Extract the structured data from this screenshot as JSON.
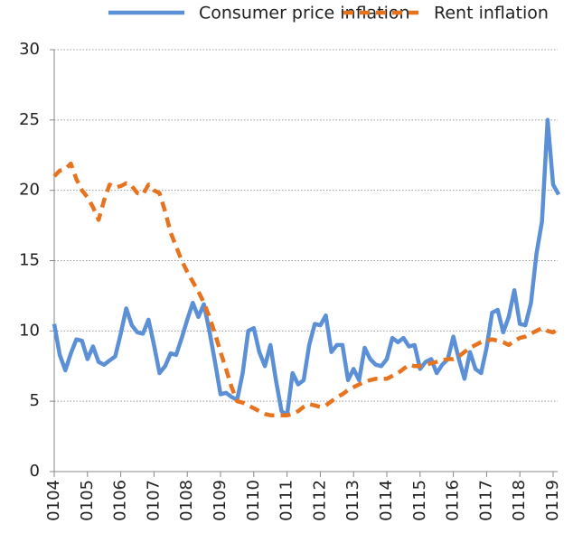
{
  "chart_data": {
    "type": "line",
    "categories": [
      "0104",
      null,
      null,
      null,
      null,
      null,
      "0105",
      null,
      null,
      null,
      null,
      null,
      "0106",
      null,
      null,
      null,
      null,
      null,
      "0107",
      null,
      null,
      null,
      null,
      null,
      "0108",
      null,
      null,
      null,
      null,
      null,
      "0109",
      null,
      null,
      null,
      null,
      null,
      "0110",
      null,
      null,
      null,
      null,
      null,
      "0111",
      null,
      null,
      null,
      null,
      null,
      "0112",
      null,
      null,
      null,
      null,
      null,
      "0113",
      null,
      null,
      null,
      null,
      null,
      "0114",
      null,
      null,
      null,
      null,
      null,
      "0115",
      null,
      null,
      null,
      null,
      null,
      "0116",
      null,
      null,
      null,
      null,
      null,
      "0117",
      null,
      null,
      null,
      null,
      null,
      "0118",
      null,
      null,
      null,
      null,
      null,
      "0119",
      null
    ],
    "series": [
      {
        "name": "Consumer price inflation",
        "color": "#5b8fd6",
        "dash": false,
        "values": [
          10.5,
          8.3,
          7.2,
          8.4,
          9.4,
          9.3,
          8.0,
          8.9,
          7.8,
          7.6,
          7.9,
          8.2,
          9.8,
          11.6,
          10.4,
          9.9,
          9.8,
          10.8,
          9.0,
          7.0,
          7.5,
          8.4,
          8.3,
          9.5,
          10.8,
          12.0,
          11.0,
          11.9,
          10.0,
          7.8,
          5.5,
          5.6,
          5.3,
          5.1,
          7.0,
          10.0,
          10.2,
          8.5,
          7.5,
          9.0,
          6.5,
          4.3,
          4.0,
          7.0,
          6.2,
          6.5,
          9.0,
          10.5,
          10.4,
          11.1,
          8.5,
          9.0,
          9.0,
          6.5,
          7.3,
          6.5,
          8.8,
          8.0,
          7.6,
          7.5,
          8.0,
          9.5,
          9.2,
          9.5,
          8.9,
          9.0,
          7.3,
          7.8,
          8.0,
          7.0,
          7.6,
          8.0,
          9.6,
          8.0,
          6.6,
          8.5,
          7.3,
          7.0,
          8.8,
          11.3,
          11.5,
          9.9,
          11.0,
          12.9,
          10.5,
          10.4,
          12.0,
          15.5,
          17.8,
          25.0,
          20.4,
          19.7
        ]
      },
      {
        "name": "Rent inflation",
        "color": "#e8731f",
        "dash": true,
        "values": [
          21.0,
          21.4,
          21.5,
          21.9,
          20.8,
          20.0,
          19.5,
          18.8,
          17.9,
          19.3,
          20.4,
          20.2,
          20.3,
          20.5,
          20.3,
          19.8,
          19.7,
          20.4,
          20.0,
          19.8,
          18.5,
          17.0,
          16.0,
          15.0,
          14.2,
          13.5,
          12.8,
          12.0,
          11.0,
          9.8,
          8.5,
          7.3,
          6.0,
          5.0,
          4.9,
          4.7,
          4.5,
          4.3,
          4.1,
          4.0,
          4.0,
          4.0,
          4.0,
          4.1,
          4.3,
          4.6,
          4.8,
          4.7,
          4.6,
          4.7,
          5.0,
          5.3,
          5.5,
          5.8,
          6.0,
          6.2,
          6.4,
          6.5,
          6.6,
          6.6,
          6.6,
          6.8,
          7.0,
          7.3,
          7.6,
          7.5,
          7.5,
          7.6,
          7.7,
          7.8,
          7.9,
          8.0,
          8.0,
          8.2,
          8.5,
          8.8,
          9.0,
          9.2,
          9.3,
          9.4,
          9.3,
          9.2,
          9.0,
          9.3,
          9.5,
          9.6,
          9.8,
          10.0,
          10.2,
          10.0,
          9.9,
          10.2
        ]
      }
    ],
    "ylim": [
      0,
      30
    ],
    "yticks": [
      0,
      5,
      10,
      15,
      20,
      25,
      30
    ],
    "grid": true,
    "legend": "top"
  }
}
